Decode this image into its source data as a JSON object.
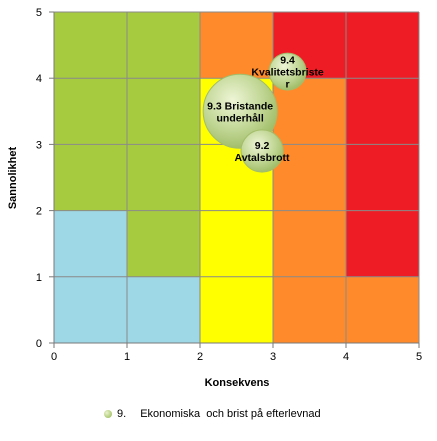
{
  "chart_data": {
    "type": "bubble-risk-matrix",
    "xlabel": "Konsekvens",
    "ylabel": "Sannolikhet",
    "xlim": [
      0,
      5
    ],
    "ylim": [
      0,
      5
    ],
    "x_ticks": [
      "0",
      "1",
      "2",
      "3",
      "4",
      "5"
    ],
    "y_ticks": [
      "0",
      "1",
      "2",
      "3",
      "4",
      "5"
    ],
    "grid": true,
    "zone_colors": {
      "blue": "#9ed7e6",
      "green": "#a7cb3f",
      "yellow": "#ffff00",
      "orange": "#ff8a2b",
      "red": "#ee1c24"
    },
    "cells": [
      [
        "blue",
        "blue",
        "yellow",
        "orange",
        "orange"
      ],
      [
        "blue",
        "green",
        "yellow",
        "orange",
        "red"
      ],
      [
        "green",
        "green",
        "yellow",
        "orange",
        "red"
      ],
      [
        "green",
        "green",
        "yellow",
        "orange",
        "red"
      ],
      [
        "green",
        "green",
        "orange",
        "red",
        "red"
      ]
    ],
    "bubble_color": "#c3d898",
    "series": [
      {
        "name": "Ekonomiska  och brist på efterlevnad",
        "points": [
          {
            "label_lines": [
              "9.4",
              "Kvalitetsbriste",
              "r"
            ],
            "x": 3.2,
            "y": 4.1,
            "size": 1
          },
          {
            "label_lines": [
              "9.3 Bristande",
              "underhåll"
            ],
            "x": 2.55,
            "y": 3.5,
            "size": 4
          },
          {
            "label_lines": [
              "9.2",
              "Avtalsbrott"
            ],
            "x": 2.85,
            "y": 2.9,
            "size": 1.3
          }
        ]
      }
    ]
  },
  "legend": {
    "number": "9.",
    "label": "Ekonomiska  och brist på efterlevnad"
  }
}
